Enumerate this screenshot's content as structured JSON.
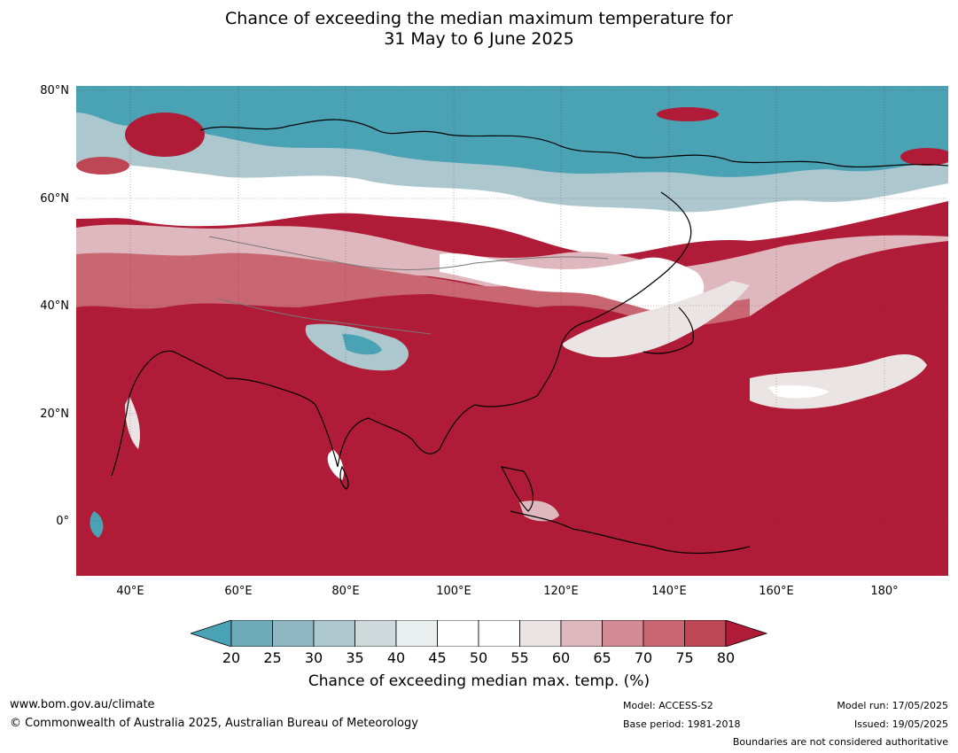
{
  "title": {
    "line1": "Chance of exceeding the median maximum temperature for",
    "line2": "31 May to 6 June 2025"
  },
  "map": {
    "lat_labels": [
      "80°N",
      "60°N",
      "40°N",
      "20°N",
      "0°"
    ],
    "lon_labels": [
      "40°E",
      "60°E",
      "80°E",
      "100°E",
      "120°E",
      "140°E",
      "160°E",
      "180°"
    ]
  },
  "legend": {
    "ticks": [
      "20",
      "25",
      "30",
      "35",
      "40",
      "45",
      "50",
      "55",
      "60",
      "65",
      "70",
      "75",
      "80"
    ],
    "label": "Chance of exceeding median max. temp. (%)",
    "colors": [
      "#4aa3b4",
      "#6faab8",
      "#8fb7c3",
      "#adc7cf",
      "#ced9dc",
      "#eaeff0",
      "#ffffff",
      "#ffffff",
      "#ebe4e5",
      "#dfb8bf",
      "#d38c96",
      "#c86772",
      "#bf4655",
      "#b01c37"
    ]
  },
  "footer": {
    "website": "www.bom.gov.au/climate",
    "copyright": "© Commonwealth of Australia 2025, Australian Bureau of Meteorology",
    "model": "Model: ACCESS-S2",
    "base_period": "Base period: 1981-2018",
    "model_run": "Model run: 17/05/2025",
    "issued": "Issued: 19/05/2025",
    "disclaimer": "Boundaries are not considered authoritative"
  }
}
